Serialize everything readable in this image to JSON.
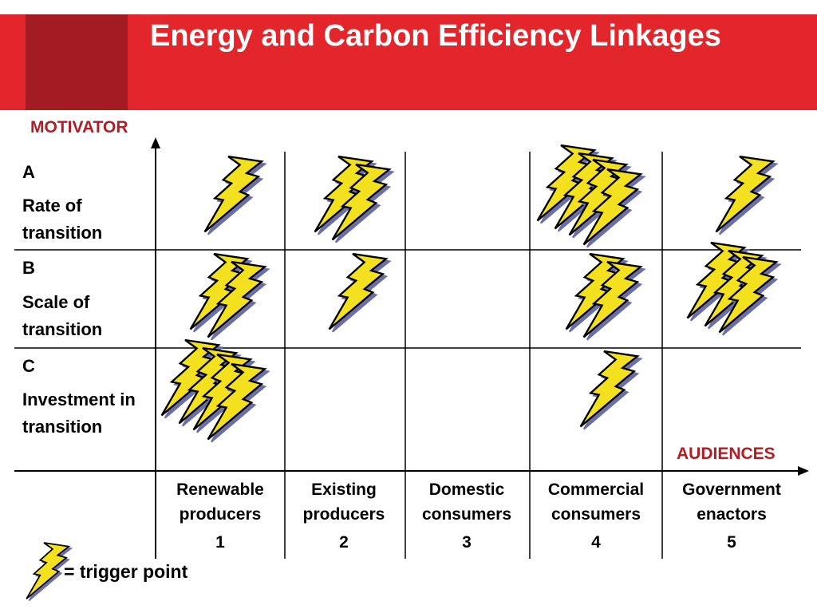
{
  "title": "Energy and Carbon Efficiency Linkages",
  "y_axis_label": "MOTIVATOR",
  "x_axis_label": "AUDIENCES",
  "rows": [
    {
      "letter": "A",
      "label": "Rate of transition",
      "trigger_counts": [
        1,
        2,
        0,
        4,
        1
      ]
    },
    {
      "letter": "B",
      "label": "Scale of transition",
      "trigger_counts": [
        2,
        1,
        0,
        2,
        3
      ]
    },
    {
      "letter": "C",
      "label": "Investment in transition",
      "trigger_counts": [
        4,
        0,
        0,
        1,
        0
      ]
    }
  ],
  "columns": [
    {
      "name": "Renewable producers",
      "number": "1"
    },
    {
      "name": "Existing producers",
      "number": "2"
    },
    {
      "name": "Domestic consumers",
      "number": "3"
    },
    {
      "name": "Commercial consumers",
      "number": "4"
    },
    {
      "name": "Government enactors",
      "number": "5"
    }
  ],
  "legend": {
    "icon": "lightning-bolt-icon",
    "label": "= trigger point"
  },
  "colors": {
    "header": "#e3262b",
    "header_block": "#a31c24",
    "accent_text": "#b01e25",
    "bolt_fill": "#f3e01e",
    "bolt_outline": "#000000",
    "bolt_shadow": "#6b6fa8"
  }
}
